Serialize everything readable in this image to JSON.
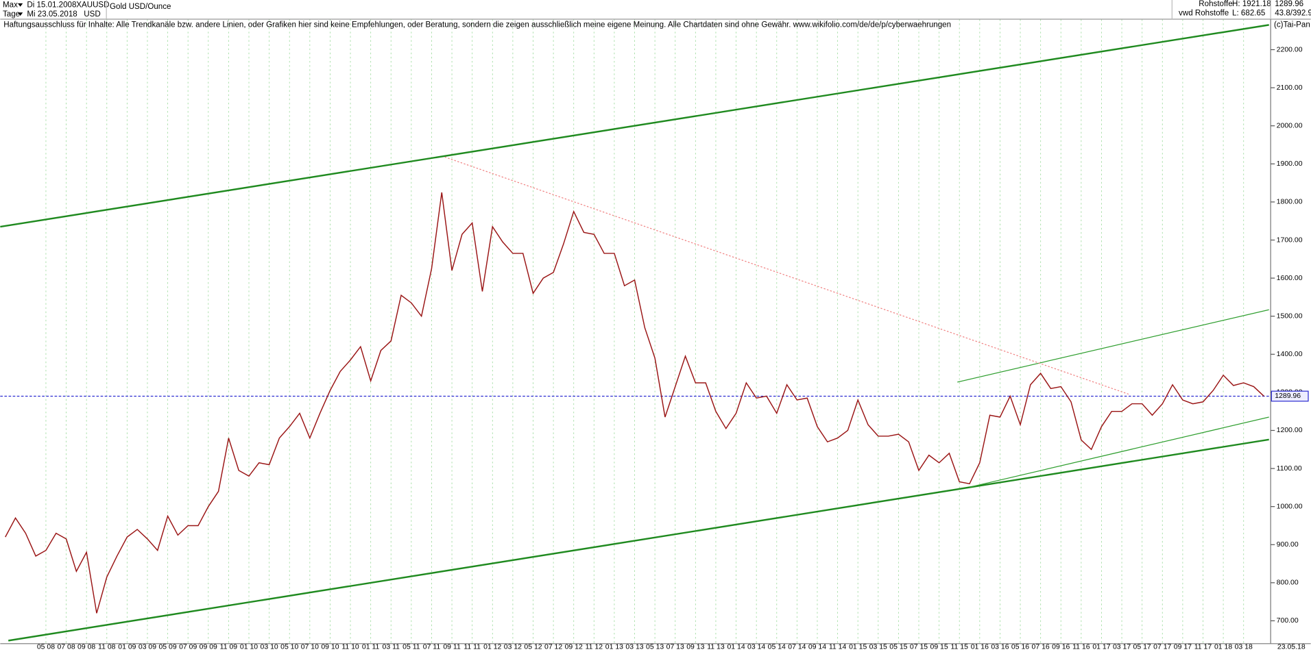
{
  "header": {
    "range": "Max",
    "start_date": "Di 15.01.2008",
    "symbol": "XAUUSD",
    "name": "Gold USD/Ounce",
    "period": "Tage",
    "end_date": "Mi 23.05.2018",
    "currency": "USD",
    "market": "Rohstoffe",
    "high": "H: 1921.18",
    "last": "1289.96",
    "source": "vwd Rohstoffe",
    "low": "L: 682.65",
    "scale": "43.8/392.9",
    "copyright": "(c)Tai-Pan"
  },
  "chart_data": {
    "type": "line",
    "annotation": "Haftungsausschluss für Inhalte: Alle Trendkanäle bzw. andere Linien, oder Grafiken hier sind keine Empfehlungen, oder Beratung, sondern die zeigen ausschließlich meine eigene Meinung. Alle Chartdaten sind ohne Gewähr.  www.wikifolio.com/de/de/p/cyberwaehrungen",
    "categories": [
      null,
      null,
      null,
      null,
      "05 08",
      null,
      "07 08",
      null,
      "09 08",
      null,
      "11 08",
      null,
      "01 09",
      null,
      "03 09",
      null,
      "05 09",
      null,
      "07 09",
      null,
      "09 09",
      null,
      "11 09",
      null,
      "01 10",
      null,
      "03 10",
      null,
      "05 10",
      null,
      "07 10",
      null,
      "09 10",
      null,
      "11 10",
      null,
      "01 11",
      null,
      "03 11",
      null,
      "05 11",
      null,
      "07 11",
      null,
      "09 11",
      null,
      "11 11",
      null,
      "01 12",
      null,
      "03 12",
      null,
      "05 12",
      null,
      "07 12",
      null,
      "09 12",
      null,
      "11 12",
      null,
      "01 13",
      null,
      "03 13",
      null,
      "05 13",
      null,
      "07 13",
      null,
      "09 13",
      null,
      "11 13",
      null,
      "01 14",
      null,
      "03 14",
      null,
      "05 14",
      null,
      "07 14",
      null,
      "09 14",
      null,
      "11 14",
      null,
      "01 15",
      null,
      "03 15",
      null,
      "05 15",
      null,
      "07 15",
      null,
      "09 15",
      null,
      "11 15",
      null,
      "01 16",
      null,
      "03 16",
      null,
      "05 16",
      null,
      "07 16",
      null,
      "09 16",
      null,
      "11 16",
      null,
      "01 17",
      null,
      "03 17",
      null,
      "05 17",
      null,
      "07 17",
      null,
      "09 17",
      null,
      "11 17",
      null,
      "01 18",
      null,
      "03 18",
      null,
      null
    ],
    "x_end_label": "23.05.18",
    "color": "#9a1515",
    "values": [
      920,
      970,
      930,
      870,
      885,
      930,
      915,
      830,
      880,
      720,
      815,
      870,
      920,
      940,
      915,
      885,
      975,
      925,
      950,
      950,
      1000,
      1040,
      1180,
      1095,
      1080,
      1115,
      1110,
      1180,
      1210,
      1245,
      1180,
      1245,
      1305,
      1355,
      1385,
      1420,
      1330,
      1410,
      1435,
      1555,
      1535,
      1500,
      1625,
      1825,
      1620,
      1715,
      1745,
      1565,
      1735,
      1695,
      1665,
      1665,
      1560,
      1600,
      1615,
      1690,
      1775,
      1720,
      1715,
      1665,
      1665,
      1580,
      1595,
      1470,
      1390,
      1235,
      1315,
      1395,
      1325,
      1325,
      1250,
      1205,
      1245,
      1325,
      1285,
      1290,
      1245,
      1320,
      1280,
      1285,
      1210,
      1170,
      1180,
      1200,
      1280,
      1215,
      1185,
      1185,
      1190,
      1170,
      1095,
      1135,
      1115,
      1140,
      1065,
      1060,
      1115,
      1240,
      1235,
      1290,
      1215,
      1320,
      1350,
      1310,
      1315,
      1275,
      1175,
      1150,
      1210,
      1250,
      1250,
      1270,
      1270,
      1240,
      1270,
      1320,
      1280,
      1270,
      1275,
      1305,
      1345,
      1318,
      1325,
      1315,
      1290
    ],
    "ylim": [
      640,
      2280
    ],
    "yticks": [
      {
        "value": 700,
        "label": "700.00"
      },
      {
        "value": 800,
        "label": "800.00"
      },
      {
        "value": 900,
        "label": "900.00"
      },
      {
        "value": 1000,
        "label": "1000.00"
      },
      {
        "value": 1100,
        "label": "1100.00"
      },
      {
        "value": 1200,
        "label": "1200.00"
      },
      {
        "value": 1300,
        "label": "1300.00"
      },
      {
        "value": 1400,
        "label": "1400.00"
      },
      {
        "value": 1500,
        "label": "1500.00"
      },
      {
        "value": 1600,
        "label": "1600.00"
      },
      {
        "value": 1700,
        "label": "1700.00"
      },
      {
        "value": 1800,
        "label": "1800.00"
      },
      {
        "value": 1900,
        "label": "1900.00"
      },
      {
        "value": 2000,
        "label": "2000.00"
      },
      {
        "value": 2100,
        "label": "2100.00"
      },
      {
        "value": 2200,
        "label": "2200.00"
      }
    ],
    "grid": true,
    "last_price": 1289.96,
    "last_price_color": "#2a2ad0",
    "trendlines": [
      {
        "from": [
          -0.5,
          1735
        ],
        "to": [
          124.5,
          2265
        ],
        "color": "#1f8a1f",
        "width": 2,
        "dash": false
      },
      {
        "from": [
          0.3,
          648
        ],
        "to": [
          124.5,
          1176
        ],
        "color": "#1f8a1f",
        "width": 2,
        "dash": false
      },
      {
        "from": [
          95,
          1051
        ],
        "to": [
          124.5,
          1235
        ],
        "color": "#2e9e2e",
        "width": 1,
        "dash": false
      },
      {
        "from": [
          93.8,
          1327
        ],
        "to": [
          124.5,
          1517
        ],
        "color": "#2e9e2e",
        "width": 1,
        "dash": false
      },
      {
        "from": [
          43.3,
          1918
        ],
        "to": [
          110.8,
          1294
        ],
        "color": "#f08080",
        "width": 1,
        "dash": true
      }
    ]
  }
}
